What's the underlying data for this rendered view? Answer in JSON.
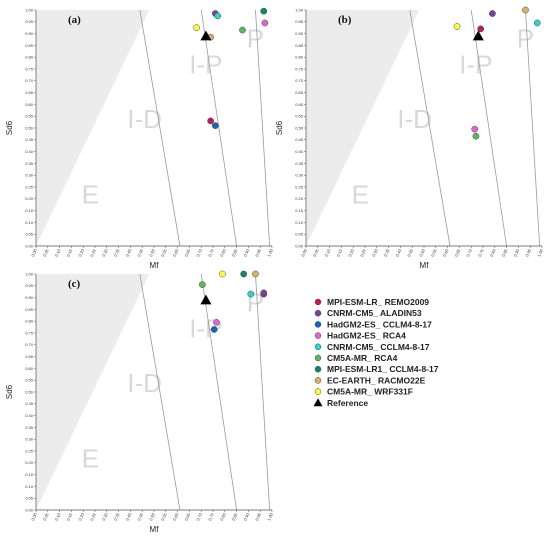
{
  "chart_data": {
    "type": "scatter",
    "x_range": [
      0,
      1
    ],
    "y_range": [
      0,
      1
    ],
    "x_ticks": [
      "0.00",
      "0.05",
      "0.10",
      "0.15",
      "0.20",
      "0.25",
      "0.30",
      "0.35",
      "0.40",
      "0.45",
      "0.50",
      "0.55",
      "0.60",
      "0.65",
      "0.70",
      "0.75",
      "0.80",
      "0.85",
      "0.90",
      "0.95",
      "1.00"
    ],
    "y_ticks": [
      "0.00",
      "0.05",
      "0.10",
      "0.15",
      "0.20",
      "0.25",
      "0.30",
      "0.35",
      "0.40",
      "0.45",
      "0.50",
      "0.55",
      "0.60",
      "0.65",
      "0.70",
      "0.75",
      "0.80",
      "0.85",
      "0.90",
      "0.95",
      "1.00"
    ],
    "xlabel": "Mf",
    "ylabel": "Sd6",
    "region_labels": [
      "E",
      "I-D",
      "I-P",
      "P"
    ],
    "zone_boundaries": [
      {
        "y0": [
          0.61,
          0.0
        ],
        "y1": [
          0.44,
          1.0
        ]
      },
      {
        "y0": [
          0.85,
          0.0
        ],
        "y1": [
          0.7,
          1.0
        ]
      },
      {
        "y0": [
          0.99,
          0.0
        ],
        "y1": [
          0.93,
          1.0
        ]
      }
    ],
    "shaded_region": [
      [
        0.0,
        0.0
      ],
      [
        0.0,
        1.0
      ],
      [
        0.48,
        1.0
      ]
    ],
    "legend": {
      "placement": "right",
      "entries": [
        {
          "name": "MPI-ESM-LR_ REMO2009",
          "color": "#c2185b",
          "marker": "circle"
        },
        {
          "name": "CNRM-CM5_ ALADIN53",
          "color": "#7b3f9e",
          "marker": "circle"
        },
        {
          "name": "HadGM2-ES_ CCLM4-8-17",
          "color": "#1565c0",
          "marker": "circle"
        },
        {
          "name": "HadGM2-ES_ RCA4",
          "color": "#e066d6",
          "marker": "circle"
        },
        {
          "name": "CNRM-CM5_ CCLM4-8-17",
          "color": "#33d1d1",
          "marker": "circle"
        },
        {
          "name": "CM5A-MR_ RCA4",
          "color": "#5cb85c",
          "marker": "circle"
        },
        {
          "name": "MPI-ESM-LR1_ CCLM4-8-17",
          "color": "#0e8a5f",
          "marker": "circle"
        },
        {
          "name": "EC-EARTH_ RACMO22E",
          "color": "#d9b25f",
          "marker": "circle"
        },
        {
          "name": "CM5A-MR_ WRF331F",
          "color": "#ffff33",
          "marker": "circle"
        },
        {
          "name": "Reference",
          "color": "#000000",
          "marker": "triangle"
        }
      ]
    },
    "panels": [
      {
        "label": "(a)",
        "points": [
          {
            "series": "MPI-ESM-LR_ REMO2009",
            "x": 0.74,
            "y": 0.53
          },
          {
            "series": "CNRM-CM5_ ALADIN53",
            "x": 0.76,
            "y": 0.985
          },
          {
            "series": "HadGM2-ES_ CCLM4-8-17",
            "x": 0.76,
            "y": 0.51
          },
          {
            "series": "HadGM2-ES_ RCA4",
            "x": 0.97,
            "y": 0.945
          },
          {
            "series": "CNRM-CM5_ CCLM4-8-17",
            "x": 0.77,
            "y": 0.975
          },
          {
            "series": "CM5A-MR_ RCA4",
            "x": 0.875,
            "y": 0.915
          },
          {
            "series": "MPI-ESM-LR1_ CCLM4-8-17",
            "x": 0.965,
            "y": 0.995
          },
          {
            "series": "EC-EARTH_ RACMO22E",
            "x": 0.74,
            "y": 0.885
          },
          {
            "series": "CM5A-MR_ WRF331F",
            "x": 0.68,
            "y": 0.925
          },
          {
            "series": "Reference",
            "x": 0.72,
            "y": 0.89
          }
        ]
      },
      {
        "label": "(b)",
        "points": [
          {
            "series": "MPI-ESM-LR_ REMO2009",
            "x": 0.74,
            "y": 0.92
          },
          {
            "series": "CNRM-CM5_ ALADIN53",
            "x": 0.79,
            "y": 0.985
          },
          {
            "series": "HadGM2-ES_ RCA4",
            "x": 0.715,
            "y": 0.495
          },
          {
            "series": "CNRM-CM5_ CCLM4-8-17",
            "x": 0.98,
            "y": 0.945
          },
          {
            "series": "CM5A-MR_ RCA4",
            "x": 0.72,
            "y": 0.465
          },
          {
            "series": "EC-EARTH_ RACMO22E",
            "x": 0.93,
            "y": 1.0
          },
          {
            "series": "CM5A-MR_ WRF331F",
            "x": 0.64,
            "y": 0.93
          },
          {
            "series": "Reference",
            "x": 0.73,
            "y": 0.89
          }
        ]
      },
      {
        "label": "(c)",
        "points": [
          {
            "series": "MPI-ESM-LR_ REMO2009",
            "x": 0.965,
            "y": 0.915
          },
          {
            "series": "CNRM-CM5_ ALADIN53",
            "x": 0.965,
            "y": 0.92
          },
          {
            "series": "HadGM2-ES_ CCLM4-8-17",
            "x": 0.755,
            "y": 0.765
          },
          {
            "series": "HadGM2-ES_ RCA4",
            "x": 0.765,
            "y": 0.795
          },
          {
            "series": "CNRM-CM5_ CCLM4-8-17",
            "x": 0.91,
            "y": 0.915
          },
          {
            "series": "CM5A-MR_ RCA4",
            "x": 0.705,
            "y": 0.955
          },
          {
            "series": "MPI-ESM-LR1_ CCLM4-8-17",
            "x": 0.88,
            "y": 1.0
          },
          {
            "series": "EC-EARTH_ RACMO22E",
            "x": 0.93,
            "y": 1.0
          },
          {
            "series": "CM5A-MR_ WRF331F",
            "x": 0.79,
            "y": 1.0
          },
          {
            "series": "Reference",
            "x": 0.72,
            "y": 0.89
          }
        ]
      }
    ]
  }
}
